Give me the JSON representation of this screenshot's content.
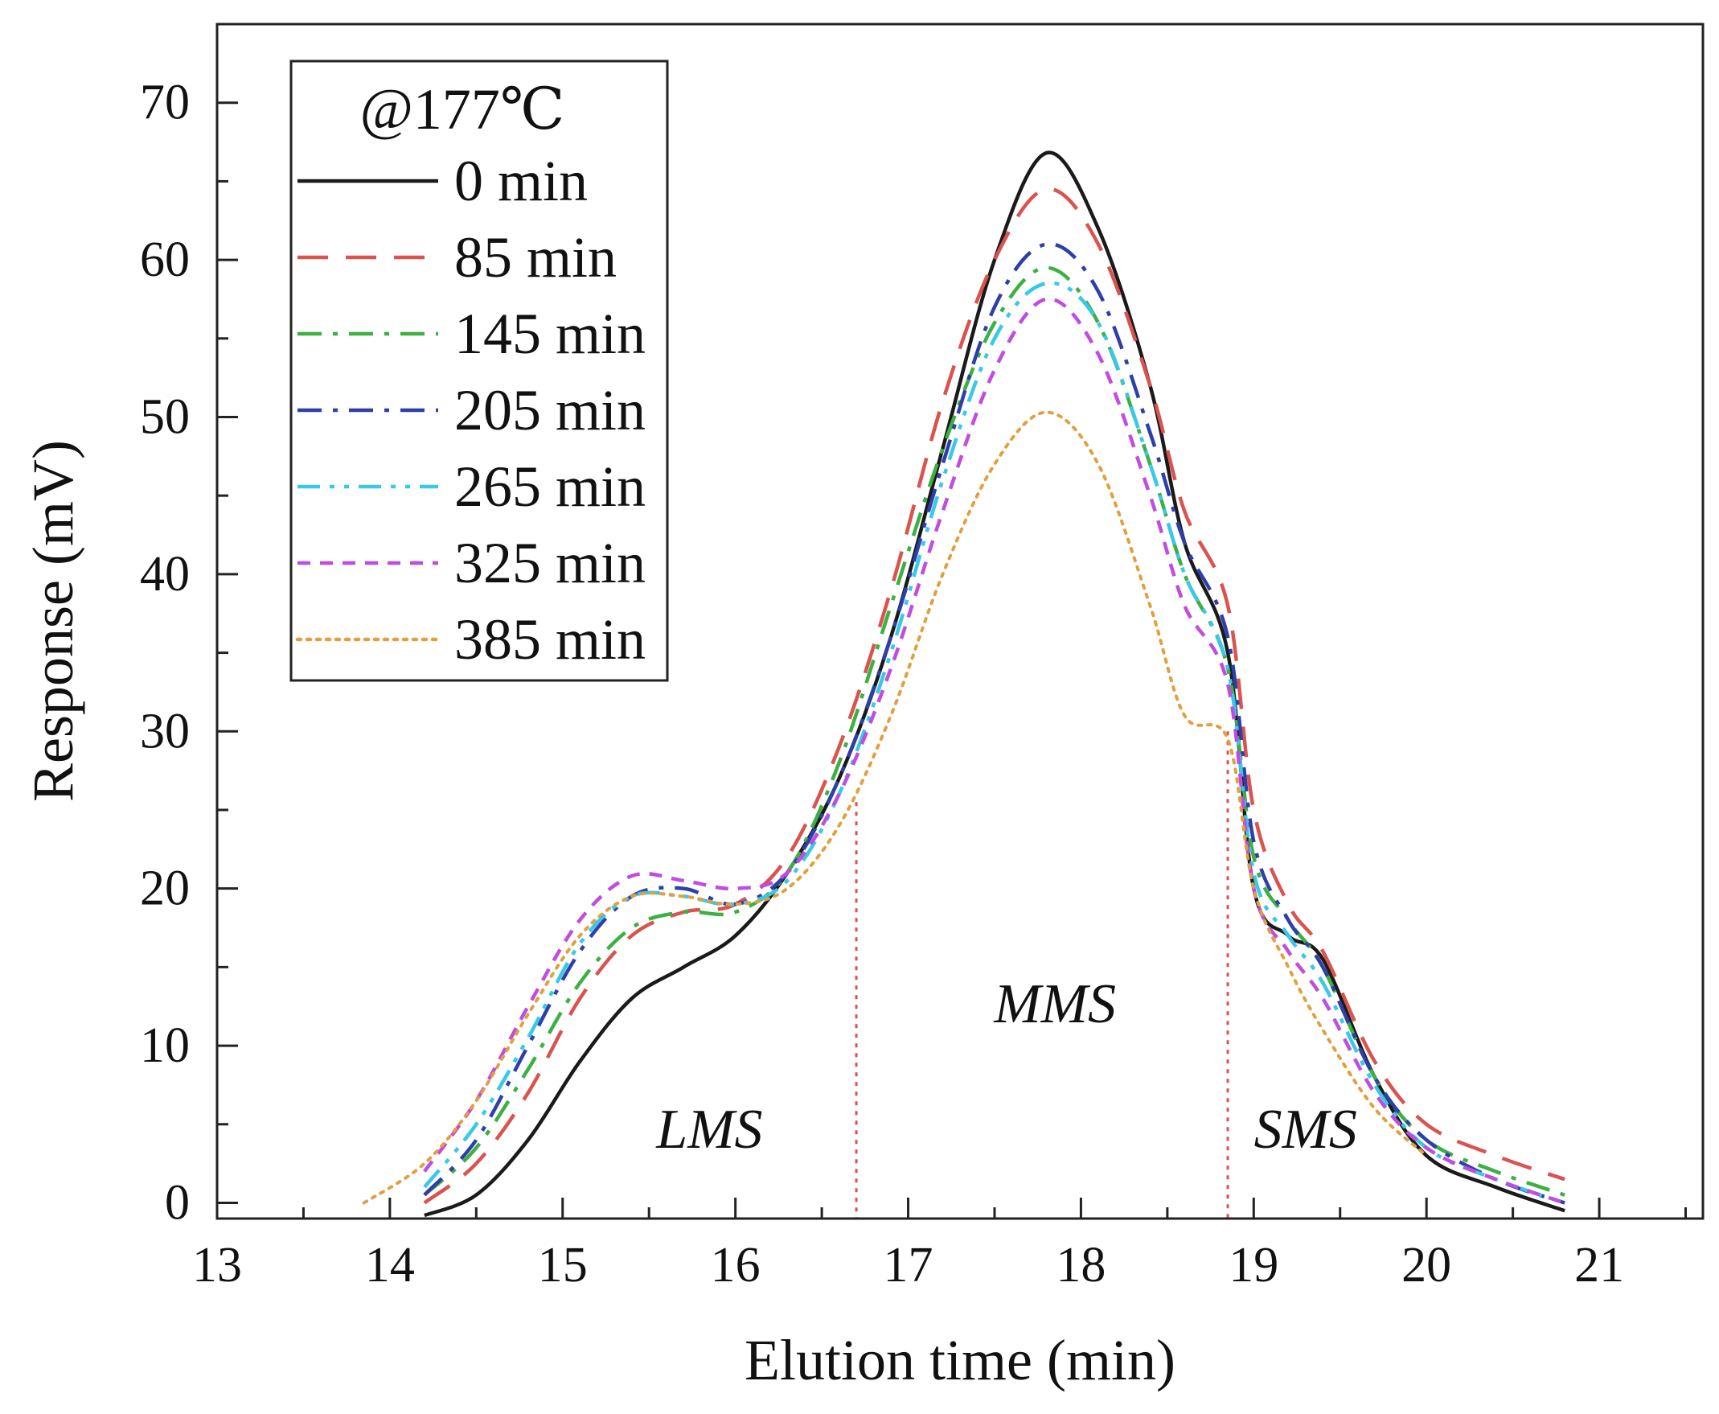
{
  "chart_data": {
    "type": "line",
    "xlabel": "Elution time (min)",
    "ylabel": "Response (mV)",
    "xlim": [
      13,
      21.6
    ],
    "ylim": [
      -1,
      75
    ],
    "xticks": [
      13,
      14,
      15,
      16,
      17,
      18,
      19,
      20,
      21
    ],
    "yticks": [
      0,
      10,
      20,
      30,
      40,
      50,
      60,
      70
    ],
    "grid": false,
    "legend": {
      "title": "@177℃",
      "position": "top-left"
    },
    "annotations": [
      {
        "text": "LMS",
        "x": 15.85,
        "y": 3.5
      },
      {
        "text": "MMS",
        "x": 17.85,
        "y": 11.5
      },
      {
        "text": "SMS",
        "x": 19.3,
        "y": 3.5
      }
    ],
    "dividers": [
      {
        "x": 16.7,
        "y_top": 25.5,
        "color": "#d9534f"
      },
      {
        "x": 18.85,
        "y_top": 30.0,
        "color": "#d9534f"
      }
    ],
    "series": [
      {
        "name": "0 min",
        "color": "#1a1a1a",
        "dash": "solid",
        "x": [
          14.2,
          14.5,
          14.8,
          15.1,
          15.4,
          15.7,
          16.0,
          16.3,
          16.6,
          16.9,
          17.2,
          17.5,
          17.8,
          18.1,
          18.4,
          18.6,
          18.85,
          19.0,
          19.2,
          19.4,
          19.7,
          20.0,
          20.4,
          20.8
        ],
        "y": [
          -0.8,
          0.5,
          4.0,
          9.0,
          13.0,
          15.0,
          17.0,
          21.0,
          27.0,
          36.0,
          48.0,
          60.0,
          66.8,
          62.0,
          52.0,
          42.0,
          35.0,
          20.0,
          17.0,
          15.5,
          8.0,
          3.0,
          1.0,
          -0.5
        ]
      },
      {
        "name": "85 min",
        "color": "#d9534f",
        "dash": "dashed",
        "x": [
          14.2,
          14.5,
          14.8,
          15.1,
          15.4,
          15.7,
          16.0,
          16.3,
          16.6,
          16.9,
          17.2,
          17.5,
          17.8,
          18.1,
          18.4,
          18.6,
          18.85,
          19.0,
          19.2,
          19.4,
          19.7,
          20.0,
          20.4,
          20.8
        ],
        "y": [
          0.0,
          2.5,
          7.0,
          13.0,
          17.0,
          18.5,
          19.0,
          22.0,
          29.0,
          39.0,
          51.0,
          60.0,
          64.5,
          61.0,
          52.0,
          44.0,
          38.0,
          25.0,
          19.0,
          16.0,
          9.0,
          5.0,
          3.0,
          1.5
        ]
      },
      {
        "name": "145 min",
        "color": "#3cb043",
        "dash": "dashdot",
        "x": [
          14.2,
          14.5,
          14.8,
          15.1,
          15.4,
          15.7,
          16.0,
          16.3,
          16.6,
          16.9,
          17.2,
          17.5,
          17.8,
          18.1,
          18.4,
          18.6,
          18.85,
          19.0,
          19.2,
          19.4,
          19.7,
          20.0,
          20.4,
          20.8
        ],
        "y": [
          0.5,
          3.5,
          8.5,
          14.0,
          17.5,
          18.5,
          18.5,
          21.0,
          28.0,
          38.0,
          48.0,
          56.0,
          59.5,
          56.0,
          47.0,
          40.0,
          34.0,
          22.0,
          18.0,
          15.0,
          8.0,
          4.0,
          2.0,
          0.5
        ]
      },
      {
        "name": "205 min",
        "color": "#2e3fa8",
        "dash": "dashdot",
        "x": [
          14.2,
          14.5,
          14.8,
          15.1,
          15.4,
          15.7,
          16.0,
          16.3,
          16.6,
          16.9,
          17.2,
          17.5,
          17.8,
          18.1,
          18.4,
          18.6,
          18.85,
          19.0,
          19.2,
          19.4,
          19.7,
          20.0,
          20.4,
          20.8
        ],
        "y": [
          0.5,
          4.0,
          10.0,
          16.0,
          19.5,
          20.0,
          19.0,
          21.0,
          27.0,
          36.0,
          47.0,
          57.0,
          61.0,
          58.0,
          49.0,
          42.0,
          36.0,
          23.0,
          18.0,
          15.0,
          8.0,
          4.0,
          1.5,
          0.0
        ]
      },
      {
        "name": "265 min",
        "color": "#38c8e8",
        "dash": "dashdotdot",
        "x": [
          14.2,
          14.5,
          14.8,
          15.1,
          15.4,
          15.7,
          16.0,
          16.3,
          16.6,
          16.9,
          17.2,
          17.5,
          17.8,
          18.1,
          18.4,
          18.6,
          18.85,
          19.0,
          19.2,
          19.4,
          19.7,
          20.0,
          20.4,
          20.8
        ],
        "y": [
          1.0,
          5.0,
          10.5,
          16.5,
          19.5,
          19.5,
          19.0,
          20.5,
          26.0,
          35.0,
          46.0,
          55.0,
          58.5,
          56.0,
          47.0,
          40.0,
          34.0,
          21.0,
          17.0,
          14.0,
          7.5,
          3.5,
          1.5,
          0.0
        ]
      },
      {
        "name": "325 min",
        "color": "#c04ce0",
        "dash": "shortdash",
        "x": [
          14.2,
          14.5,
          14.8,
          15.1,
          15.4,
          15.7,
          16.0,
          16.3,
          16.6,
          16.9,
          17.2,
          17.5,
          17.8,
          18.1,
          18.4,
          18.6,
          18.85,
          19.0,
          19.2,
          19.4,
          19.7,
          20.0,
          20.4,
          20.8
        ],
        "y": [
          2.0,
          6.5,
          12.5,
          18.0,
          20.8,
          20.5,
          20.0,
          21.0,
          26.0,
          34.0,
          44.0,
          53.0,
          57.5,
          54.0,
          45.0,
          38.0,
          33.0,
          20.0,
          16.0,
          13.0,
          7.0,
          3.5,
          1.5,
          0.0
        ]
      },
      {
        "name": "385 min",
        "color": "#e0a040",
        "dash": "dotted",
        "x": [
          13.85,
          14.2,
          14.5,
          14.8,
          15.1,
          15.4,
          15.7,
          16.0,
          16.3,
          16.6,
          16.9,
          17.2,
          17.5,
          17.8,
          18.1,
          18.4,
          18.6,
          18.85,
          19.0,
          19.2,
          19.4,
          19.7,
          20.0
        ],
        "y": [
          0.0,
          2.5,
          6.5,
          12.0,
          17.0,
          19.5,
          19.5,
          19.0,
          20.0,
          24.0,
          31.0,
          40.0,
          47.0,
          50.3,
          47.0,
          38.0,
          31.0,
          29.5,
          20.0,
          15.0,
          11.0,
          6.0,
          3.0
        ]
      }
    ]
  }
}
